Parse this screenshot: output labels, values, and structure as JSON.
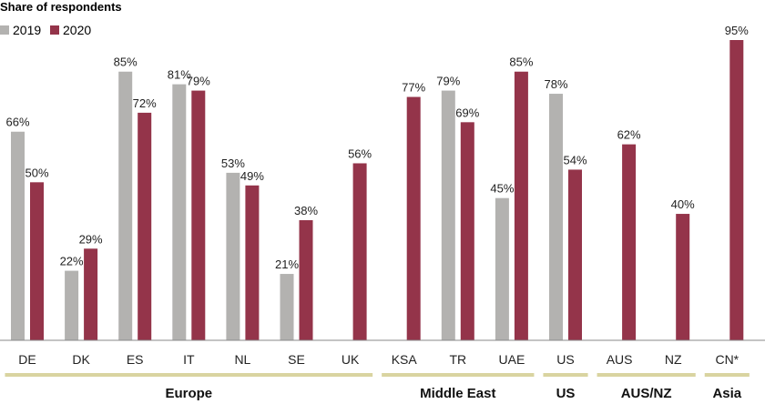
{
  "chart_data": {
    "type": "bar",
    "title": "Share of respondents",
    "xlabel": "",
    "ylabel": "",
    "ylim": [
      0,
      100
    ],
    "grid": false,
    "legend_position": "top-left",
    "categories": [
      "DE",
      "DK",
      "ES",
      "IT",
      "NL",
      "SE",
      "UK",
      "KSA",
      "TR",
      "UAE",
      "US",
      "AUS",
      "NZ",
      "CN*"
    ],
    "series": [
      {
        "name": "2019",
        "color": "#b3b2b0",
        "values": [
          66,
          22,
          85,
          81,
          53,
          21,
          null,
          null,
          79,
          45,
          78,
          null,
          null,
          null
        ]
      },
      {
        "name": "2020",
        "color": "#94344a",
        "values": [
          50,
          29,
          72,
          79,
          49,
          38,
          56,
          77,
          69,
          85,
          54,
          62,
          40,
          95
        ]
      }
    ],
    "value_suffix": "%",
    "groups": [
      {
        "label": "Europe",
        "categories": [
          "DE",
          "DK",
          "ES",
          "IT",
          "NL",
          "SE",
          "UK"
        ]
      },
      {
        "label": "Middle East",
        "categories": [
          "KSA",
          "TR",
          "UAE"
        ]
      },
      {
        "label": "US",
        "categories": [
          "US"
        ]
      },
      {
        "label": "AUS/NZ",
        "categories": [
          "AUS",
          "NZ"
        ]
      },
      {
        "label": "Asia",
        "categories": [
          "CN*"
        ]
      }
    ],
    "axis_color": "#8a8a8a",
    "group_bar_color": "#d9d4a0"
  }
}
